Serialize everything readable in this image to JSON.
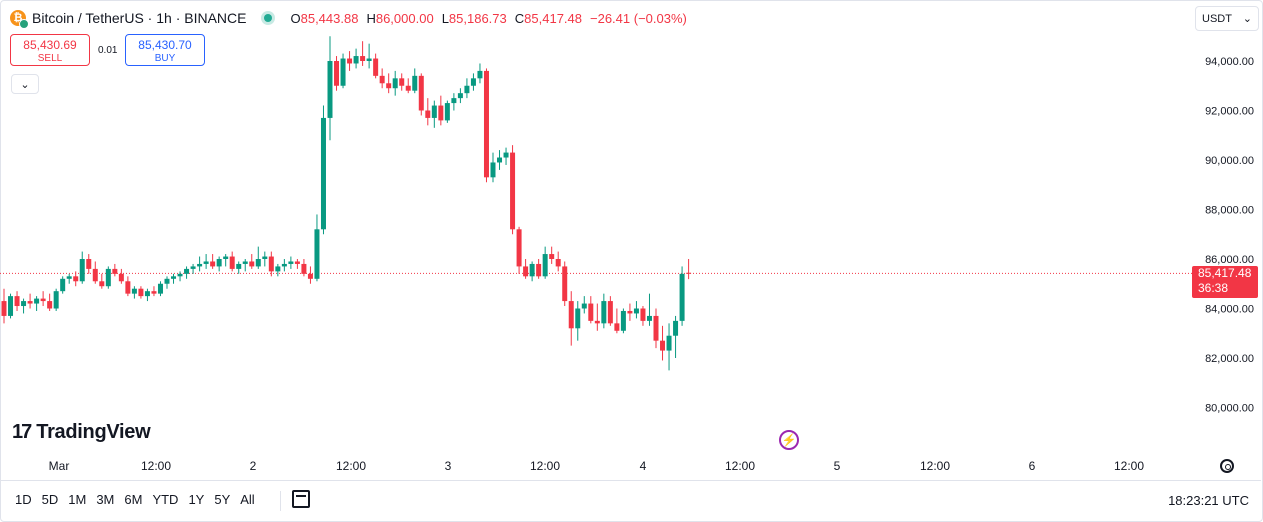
{
  "header": {
    "symbol": "Bitcoin / TetherUS · 1h · BINANCE",
    "coin_glyph": "₿",
    "open_label": "O",
    "open": "85,443.88",
    "high_label": "H",
    "high": "86,000.00",
    "low_label": "L",
    "low": "85,186.73",
    "close_label": "C",
    "close": "85,417.48",
    "change": "−26.41 (−0.03%)"
  },
  "trade": {
    "sell_price": "85,430.69",
    "sell_label": "SELL",
    "spread": "0.01",
    "buy_price": "85,430.70",
    "buy_label": "BUY",
    "collapse_glyph": "⌄"
  },
  "currency": {
    "value": "USDT",
    "arrow": "⌄"
  },
  "price_scale": {
    "labels": [
      "94,000.00",
      "92,000.00",
      "90,000.00",
      "88,000.00",
      "86,000.00",
      "84,000.00",
      "82,000.00",
      "80,000.00"
    ]
  },
  "last_price": {
    "value": "85,417.48",
    "countdown": "36:38"
  },
  "time_axis": {
    "labels": [
      "Mar",
      "12:00",
      "2",
      "12:00",
      "3",
      "12:00",
      "4",
      "12:00",
      "5",
      "12:00",
      "6",
      "12:00"
    ]
  },
  "logo": {
    "text": "TradingView",
    "glyph": "17"
  },
  "flash_glyph": "⚡",
  "bottom": {
    "ranges": [
      "1D",
      "5D",
      "1M",
      "3M",
      "6M",
      "YTD",
      "1Y",
      "5Y",
      "All"
    ],
    "clock": "18:23:21 UTC"
  },
  "colors": {
    "up": "#089981",
    "down": "#f23645",
    "orange": "#f57c00",
    "accent": "#2962ff"
  },
  "chart_data": {
    "type": "candlestick",
    "interval": "1h",
    "y_range": [
      79000,
      95500
    ],
    "last_price": 85417.48,
    "candles": [
      [
        84300,
        84800,
        83400,
        83700
      ],
      [
        83700,
        84600,
        83600,
        84500
      ],
      [
        84500,
        84700,
        83900,
        84100
      ],
      [
        84100,
        84400,
        83800,
        84300
      ],
      [
        84300,
        84600,
        84000,
        84200
      ],
      [
        84200,
        84500,
        83900,
        84400
      ],
      [
        84400,
        84700,
        84100,
        84300
      ],
      [
        84300,
        84600,
        83900,
        84000
      ],
      [
        84000,
        84800,
        83900,
        84700
      ],
      [
        84700,
        85300,
        84600,
        85200
      ],
      [
        85200,
        85400,
        85000,
        85300
      ],
      [
        85300,
        85500,
        84900,
        85100
      ],
      [
        85100,
        86300,
        85000,
        86000
      ],
      [
        86000,
        86200,
        85400,
        85600
      ],
      [
        85600,
        85900,
        85000,
        85100
      ],
      [
        85100,
        85400,
        84800,
        84900
      ],
      [
        84900,
        85700,
        84800,
        85600
      ],
      [
        85600,
        85800,
        85300,
        85400
      ],
      [
        85400,
        85600,
        85000,
        85100
      ],
      [
        85100,
        85300,
        84500,
        84600
      ],
      [
        84600,
        84900,
        84400,
        84800
      ],
      [
        84800,
        84900,
        84400,
        84500
      ],
      [
        84500,
        84800,
        84300,
        84700
      ],
      [
        84700,
        84900,
        84500,
        84600
      ],
      [
        84600,
        85100,
        84500,
        85000
      ],
      [
        85000,
        85300,
        84800,
        85200
      ],
      [
        85200,
        85400,
        85000,
        85300
      ],
      [
        85300,
        85500,
        85100,
        85400
      ],
      [
        85400,
        85700,
        85200,
        85600
      ],
      [
        85600,
        85800,
        85400,
        85700
      ],
      [
        85700,
        86100,
        85500,
        85800
      ],
      [
        85800,
        86200,
        85600,
        85900
      ],
      [
        85900,
        86200,
        85600,
        85700
      ],
      [
        85700,
        86100,
        85500,
        86000
      ],
      [
        86000,
        86200,
        85700,
        86100
      ],
      [
        86100,
        86300,
        85500,
        85600
      ],
      [
        85600,
        85900,
        85400,
        85800
      ],
      [
        85800,
        86000,
        85500,
        85900
      ],
      [
        85900,
        86200,
        85600,
        85700
      ],
      [
        85700,
        86500,
        85600,
        86000
      ],
      [
        86000,
        86300,
        85700,
        86100
      ],
      [
        86100,
        86300,
        85300,
        85500
      ],
      [
        85500,
        85800,
        85300,
        85700
      ],
      [
        85700,
        86000,
        85500,
        85800
      ],
      [
        85800,
        86100,
        85600,
        85900
      ],
      [
        85900,
        86000,
        85600,
        85800
      ],
      [
        85800,
        86000,
        85300,
        85400
      ],
      [
        85400,
        85700,
        85000,
        85200
      ],
      [
        85200,
        87800,
        85100,
        87200
      ],
      [
        87200,
        92200,
        87000,
        91700
      ],
      [
        91700,
        95000,
        90800,
        94000
      ],
      [
        94000,
        94200,
        92800,
        93000
      ],
      [
        93000,
        94300,
        92900,
        94100
      ],
      [
        94100,
        94400,
        93600,
        93900
      ],
      [
        93900,
        94500,
        93700,
        94200
      ],
      [
        94200,
        94800,
        93800,
        94000
      ],
      [
        94000,
        94700,
        93700,
        94100
      ],
      [
        94100,
        94300,
        93300,
        93400
      ],
      [
        93400,
        93700,
        92900,
        93100
      ],
      [
        93100,
        93500,
        92700,
        92900
      ],
      [
        92900,
        93600,
        92600,
        93300
      ],
      [
        93300,
        93500,
        92800,
        93000
      ],
      [
        93000,
        93300,
        92700,
        92800
      ],
      [
        92800,
        93700,
        92700,
        93400
      ],
      [
        93400,
        93500,
        91800,
        92000
      ],
      [
        92000,
        92500,
        91400,
        91700
      ],
      [
        91700,
        92400,
        91300,
        92200
      ],
      [
        92200,
        92600,
        91400,
        91600
      ],
      [
        91600,
        92400,
        91500,
        92300
      ],
      [
        92300,
        92700,
        92000,
        92500
      ],
      [
        92500,
        92900,
        92300,
        92700
      ],
      [
        92700,
        93300,
        92500,
        93000
      ],
      [
        93000,
        93500,
        92800,
        93300
      ],
      [
        93300,
        93900,
        93100,
        93600
      ],
      [
        93600,
        93700,
        89100,
        89300
      ],
      [
        89300,
        90300,
        89100,
        89900
      ],
      [
        89900,
        90400,
        89600,
        90100
      ],
      [
        90100,
        90500,
        89800,
        90300
      ],
      [
        90300,
        90600,
        87000,
        87200
      ],
      [
        87200,
        87300,
        85400,
        85700
      ],
      [
        85700,
        86000,
        85200,
        85300
      ],
      [
        85300,
        85900,
        85100,
        85800
      ],
      [
        85800,
        86000,
        85200,
        85300
      ],
      [
        85300,
        86500,
        85200,
        86200
      ],
      [
        86200,
        86500,
        85800,
        86000
      ],
      [
        86000,
        86300,
        85500,
        85700
      ],
      [
        85700,
        85900,
        84100,
        84300
      ],
      [
        84300,
        84700,
        82500,
        83200
      ],
      [
        83200,
        84300,
        82700,
        84000
      ],
      [
        84000,
        84500,
        83800,
        84200
      ],
      [
        84200,
        84500,
        83400,
        83500
      ],
      [
        83500,
        84200,
        83100,
        83400
      ],
      [
        83400,
        84600,
        83200,
        84300
      ],
      [
        84300,
        84500,
        83300,
        83400
      ],
      [
        83400,
        84000,
        83000,
        83100
      ],
      [
        83100,
        84000,
        83000,
        83900
      ],
      [
        83900,
        84200,
        83500,
        83800
      ],
      [
        83800,
        84300,
        83600,
        84000
      ],
      [
        84000,
        84100,
        83300,
        83500
      ],
      [
        83500,
        84600,
        83300,
        83700
      ],
      [
        83700,
        84000,
        82400,
        82700
      ],
      [
        82700,
        83300,
        81900,
        82300
      ],
      [
        82300,
        83400,
        81500,
        82900
      ],
      [
        82900,
        83700,
        82000,
        83500
      ],
      [
        83500,
        85700,
        83300,
        85400
      ],
      [
        85443.88,
        86000,
        85186.73,
        85417.48
      ]
    ]
  }
}
